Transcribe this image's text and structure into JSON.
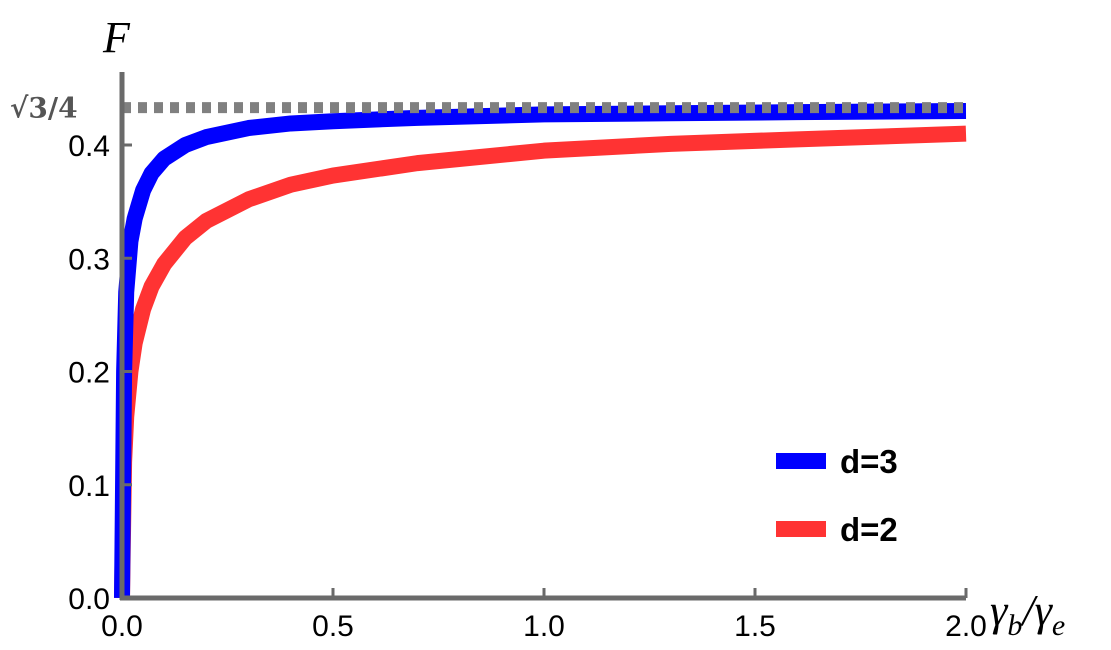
{
  "chart_data": {
    "type": "line",
    "ylabel": "F",
    "xlabel_main": "γ",
    "xlabel_sub1": "b",
    "xlabel_sep": "/",
    "xlabel_main2": "γ",
    "xlabel_sub2": "e",
    "xlim": [
      0,
      2.0
    ],
    "ylim": [
      0,
      0.45
    ],
    "x_ticks": [
      "0.0",
      "0.5",
      "1.0",
      "1.5",
      "2.0"
    ],
    "y_ticks": [
      "0.0",
      "0.1",
      "0.2",
      "0.3",
      "0.4"
    ],
    "asymptote": {
      "label": "√3/4",
      "value": 0.433
    },
    "grid": false,
    "legend_position": "bottom-right",
    "series": [
      {
        "name": "d=3",
        "color": "#0000ff",
        "x": [
          0.0,
          0.005,
          0.01,
          0.02,
          0.03,
          0.05,
          0.07,
          0.1,
          0.15,
          0.2,
          0.3,
          0.4,
          0.5,
          0.7,
          1.0,
          1.3,
          1.6,
          2.0
        ],
        "y": [
          0.0,
          0.2,
          0.27,
          0.315,
          0.335,
          0.36,
          0.375,
          0.388,
          0.4,
          0.407,
          0.415,
          0.419,
          0.421,
          0.424,
          0.427,
          0.428,
          0.429,
          0.43
        ]
      },
      {
        "name": "d=2",
        "color": "#ff3333",
        "x": [
          0.0,
          0.005,
          0.01,
          0.02,
          0.03,
          0.05,
          0.07,
          0.1,
          0.15,
          0.2,
          0.3,
          0.4,
          0.5,
          0.7,
          1.0,
          1.3,
          1.6,
          2.0
        ],
        "y": [
          0.0,
          0.12,
          0.16,
          0.2,
          0.225,
          0.255,
          0.275,
          0.295,
          0.318,
          0.333,
          0.352,
          0.365,
          0.373,
          0.384,
          0.395,
          0.401,
          0.405,
          0.41
        ]
      }
    ]
  }
}
